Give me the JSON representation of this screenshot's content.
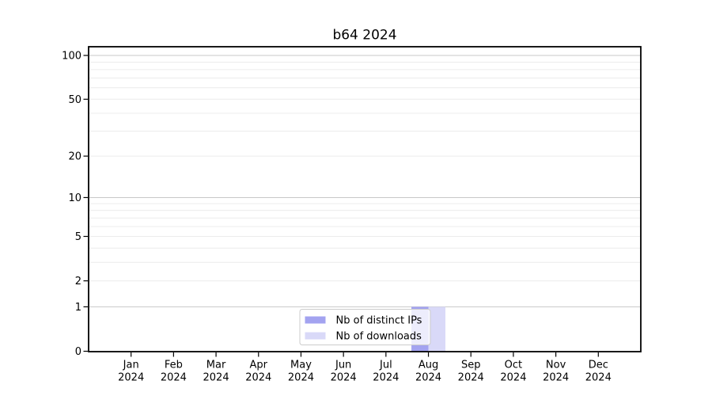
{
  "chart_data": {
    "type": "bar",
    "title": "b64 2024",
    "categories": [
      "Jan 2024",
      "Feb 2024",
      "Mar 2024",
      "Apr 2024",
      "May 2024",
      "Jun 2024",
      "Jul 2024",
      "Aug 2024",
      "Sep 2024",
      "Oct 2024",
      "Nov 2024",
      "Dec 2024"
    ],
    "series": [
      {
        "name": "Nb of distinct IPs",
        "color": "#a3a3f0",
        "values": [
          0,
          0,
          0,
          0,
          0,
          0,
          0,
          1,
          0,
          0,
          0,
          0
        ]
      },
      {
        "name": "Nb of downloads",
        "color": "#d9d9f8",
        "values": [
          0,
          0,
          0,
          0,
          0,
          0,
          0,
          1,
          0,
          0,
          0,
          0
        ]
      }
    ],
    "xlabel": "",
    "ylabel": "",
    "yscale": "log1p",
    "ylim": [
      0,
      116
    ],
    "y_ticks": [
      0,
      1,
      2,
      5,
      10,
      20,
      50,
      100
    ],
    "y_major_gridlines": [
      1,
      10,
      100
    ],
    "y_minor_gridlines": [
      2,
      3,
      4,
      5,
      6,
      7,
      8,
      9,
      20,
      30,
      40,
      50,
      60,
      70,
      80,
      90
    ],
    "grid": true,
    "legend": {
      "position": "lower center",
      "entries": [
        "Nb of distinct IPs",
        "Nb of downloads"
      ]
    },
    "colors": {
      "major_grid": "#c8c8c8",
      "minor_grid": "#ececec",
      "axis": "#000000",
      "background": "#ffffff"
    }
  }
}
